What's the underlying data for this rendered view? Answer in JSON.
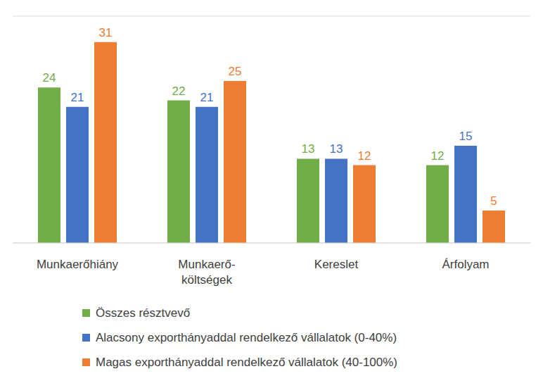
{
  "chart_data": {
    "type": "bar",
    "categories": [
      "Munkaerőhiány",
      "Munkaerő-költségek",
      "Kereslet",
      "Árfolyam"
    ],
    "series": [
      {
        "name": "Összes résztvevő",
        "color": "#70ad47",
        "values": [
          24,
          22,
          13,
          12
        ]
      },
      {
        "name": "Alacsony exporthányaddal rendelkező vállalatok (0-40%)",
        "color": "#4472c4",
        "values": [
          21,
          21,
          13,
          15
        ]
      },
      {
        "name": "Magas exporthányaddal rendelkező vállalatok (40-100%)",
        "color": "#ed7d31",
        "values": [
          31,
          25,
          12,
          5
        ]
      }
    ],
    "ylim": [
      0,
      35
    ],
    "yticks": [
      0,
      5,
      10,
      15,
      20,
      25,
      30,
      35
    ],
    "grid": true,
    "data_labels": true,
    "tick_labels": "x",
    "legend": "bottom"
  }
}
